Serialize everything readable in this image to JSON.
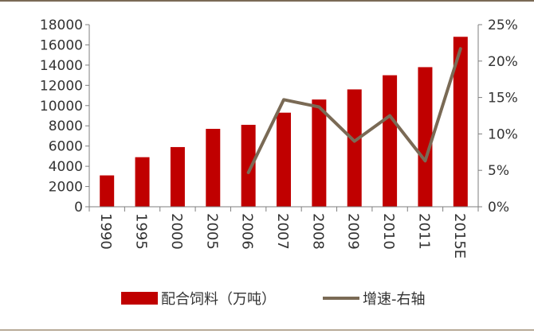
{
  "colors": {
    "bar": "#c00000",
    "line": "#7a6a55",
    "axis": "#7f7f7f"
  },
  "chart_data": {
    "type": "bar",
    "categories": [
      "1990",
      "1995",
      "2000",
      "2005",
      "2006",
      "2007",
      "2008",
      "2009",
      "2010",
      "2011",
      "2015E"
    ],
    "series": [
      {
        "name": "配合饲料（万吨）",
        "type": "bar",
        "axis": "left",
        "values": [
          3100,
          4900,
          5900,
          7700,
          8100,
          9300,
          10600,
          11600,
          13000,
          13800,
          16800
        ]
      },
      {
        "name": "增速-右轴",
        "type": "line",
        "axis": "right",
        "values": [
          null,
          null,
          null,
          null,
          4.7,
          14.7,
          13.7,
          9.0,
          12.5,
          6.3,
          21.7
        ]
      }
    ],
    "y_left": {
      "range": [
        0,
        18000
      ],
      "ticks": [
        "0",
        "2000",
        "4000",
        "6000",
        "8000",
        "10000",
        "12000",
        "14000",
        "16000",
        "18000"
      ]
    },
    "y_right": {
      "range": [
        0,
        25
      ],
      "ticks": [
        "0%",
        "5%",
        "10%",
        "15%",
        "20%",
        "25%"
      ]
    },
    "grid": false,
    "legend": {
      "position": "bottom"
    },
    "title": "",
    "xlabel": "",
    "ylabel": ""
  }
}
